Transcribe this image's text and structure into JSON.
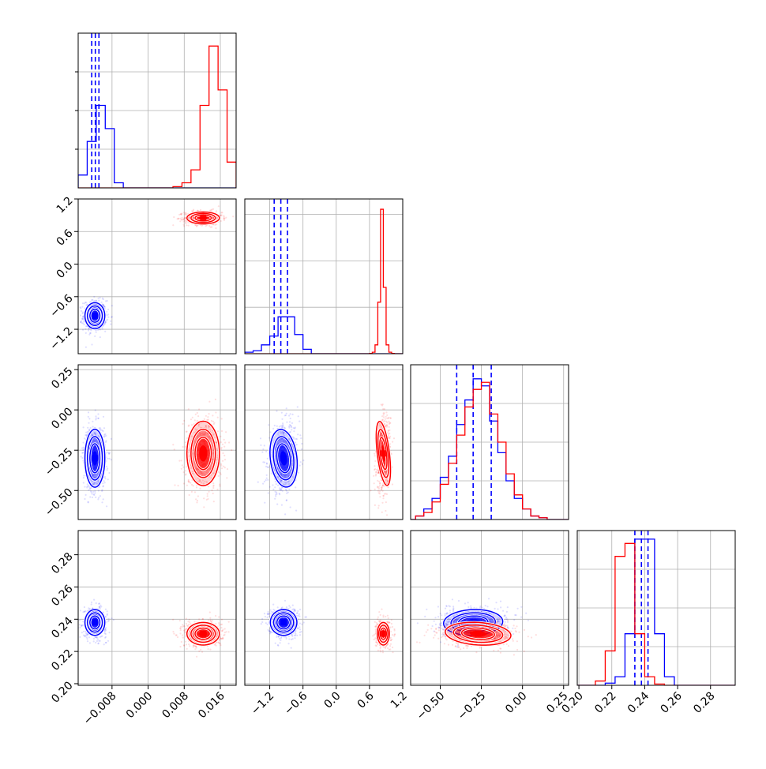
{
  "colors": {
    "blue": "#0000ff",
    "red": "#ff0000",
    "grid": "#b0b0b0",
    "frame": "#000000"
  },
  "chart_data": {
    "type": "corner",
    "description_note": "",
    "params": [
      {
        "ticks": [
          "−0.008",
          "0.000",
          "0.008",
          "0.016"
        ],
        "tick_values": [
          -0.008,
          0.0,
          0.008,
          0.016
        ],
        "range": [
          -0.0155,
          0.0195
        ]
      },
      {
        "ticks": [
          "−1.2",
          "−0.6",
          "0.0",
          "0.6",
          "1.2"
        ],
        "tick_values": [
          -1.2,
          -0.6,
          0.0,
          0.6,
          1.2
        ],
        "range": [
          -1.65,
          1.2
        ]
      },
      {
        "ticks": [
          "0.25",
          "0.00",
          "−0.25",
          "−0.50"
        ],
        "tick_values": [
          0.25,
          0.0,
          -0.25,
          -0.5
        ],
        "range": [
          -0.68,
          0.28
        ]
      },
      {
        "ticks": [
          "0.28",
          "0.26",
          "0.24",
          "0.22",
          "0.20"
        ],
        "tick_values": [
          0.28,
          0.26,
          0.24,
          0.22,
          0.2
        ],
        "range": [
          0.199,
          0.295
        ]
      }
    ],
    "x_tick_labels": [
      [
        "−0.008",
        "0.000",
        "0.008",
        "0.016"
      ],
      [
        "−1.2",
        "−0.6",
        "0.0",
        "0.6",
        "1.2"
      ],
      [
        "−0.50",
        "−0.25",
        "0.00",
        "0.25"
      ],
      [
        "0.20",
        "0.22",
        "0.24",
        "0.26",
        "0.28"
      ]
    ],
    "x_tick_values": [
      [
        -0.008,
        0.0,
        0.008,
        0.016
      ],
      [
        -1.2,
        -0.6,
        0.0,
        0.6,
        1.2
      ],
      [
        -0.5,
        -0.25,
        0.0,
        0.25
      ],
      [
        0.2,
        0.22,
        0.24,
        0.26,
        0.28
      ]
    ],
    "y_tick_labels": [
      [],
      [
        "1.2",
        "0.6",
        "0.0",
        "−0.6",
        "−1.2"
      ],
      [
        "0.25",
        "0.00",
        "−0.25",
        "−0.50"
      ],
      [
        "0.28",
        "0.26",
        "0.24",
        "0.22",
        "0.20"
      ]
    ],
    "y_tick_values": [
      [],
      [
        1.2,
        0.6,
        0.0,
        -0.6,
        -1.2
      ],
      [
        0.25,
        0.0,
        -0.25,
        -0.5
      ],
      [
        0.28,
        0.26,
        0.24,
        0.22,
        0.2
      ]
    ],
    "series": [
      {
        "color": "#0000ff",
        "means": [
          -0.0118,
          -0.95,
          -0.3,
          0.238
        ],
        "sigmas": [
          0.0011,
          0.12,
          0.09,
          0.004
        ],
        "quantiles": [
          [
            -0.0125,
            -0.0117,
            -0.0109
          ],
          [
            -1.12,
            -1.0,
            -0.88
          ],
          [
            -0.4,
            -0.3,
            -0.19
          ],
          [
            0.234,
            0.238,
            0.242
          ]
        ],
        "hist": [
          {
            "edges": [
              -0.0155,
              -0.0135,
              -0.0115,
              -0.0095,
              -0.0075,
              -0.0055
            ],
            "counts": [
              0.05,
              0.18,
              0.32,
              0.23,
              0.02
            ]
          },
          {
            "edges": [
              -1.65,
              -1.5,
              -1.35,
              -1.2,
              -1.05,
              -0.9,
              -0.75,
              -0.6,
              -0.45
            ],
            "counts": [
              0.01,
              0.02,
              0.06,
              0.12,
              0.25,
              0.25,
              0.13,
              0.03
            ]
          },
          {
            "edges": [
              -0.65,
              -0.6,
              -0.55,
              -0.5,
              -0.45,
              -0.4,
              -0.35,
              -0.3,
              -0.25,
              -0.2,
              -0.15,
              -0.1,
              -0.05,
              0.0,
              0.05,
              0.1,
              0.15
            ],
            "counts": [
              0.01,
              0.03,
              0.06,
              0.12,
              0.18,
              0.27,
              0.34,
              0.4,
              0.38,
              0.28,
              0.19,
              0.11,
              0.06,
              0.03,
              0.01,
              0.005
            ]
          },
          {
            "edges": [
              0.216,
              0.222,
              0.228,
              0.234,
              0.24,
              0.246,
              0.252,
              0.258
            ],
            "counts": [
              0.005,
              0.02,
              0.12,
              0.34,
              0.34,
              0.12,
              0.02
            ]
          }
        ]
      },
      {
        "color": "#ff0000",
        "means": [
          0.0122,
          0.85,
          -0.27,
          0.231
        ],
        "sigmas": [
          0.0018,
          0.055,
          0.1,
          0.0035
        ],
        "quantiles": [],
        "hist": [
          {
            "edges": [
              0.0055,
              0.0075,
              0.0095,
              0.0115,
              0.0135,
              0.0155,
              0.0175,
              0.0195
            ],
            "counts": [
              0.005,
              0.02,
              0.07,
              0.32,
              0.55,
              0.38,
              0.1
            ]
          },
          {
            "edges": [
              0.6,
              0.65,
              0.7,
              0.75,
              0.8,
              0.85,
              0.9,
              0.95,
              1.0,
              1.05,
              1.1
            ],
            "counts": [
              0.002,
              0.01,
              0.06,
              0.35,
              0.98,
              0.45,
              0.06,
              0.01,
              0.002,
              0.0
            ]
          },
          {
            "edges": [
              -0.65,
              -0.6,
              -0.55,
              -0.5,
              -0.45,
              -0.4,
              -0.35,
              -0.3,
              -0.25,
              -0.2,
              -0.15,
              -0.1,
              -0.05,
              0.0,
              0.05,
              0.1,
              0.15
            ],
            "counts": [
              0.01,
              0.02,
              0.05,
              0.1,
              0.16,
              0.24,
              0.32,
              0.37,
              0.39,
              0.3,
              0.22,
              0.13,
              0.07,
              0.03,
              0.01,
              0.005
            ]
          },
          {
            "edges": [
              0.21,
              0.216,
              0.222,
              0.228,
              0.234,
              0.24,
              0.246,
              0.252
            ],
            "counts": [
              0.01,
              0.08,
              0.3,
              0.33,
              0.12,
              0.02,
              0.003
            ]
          }
        ]
      }
    ]
  }
}
